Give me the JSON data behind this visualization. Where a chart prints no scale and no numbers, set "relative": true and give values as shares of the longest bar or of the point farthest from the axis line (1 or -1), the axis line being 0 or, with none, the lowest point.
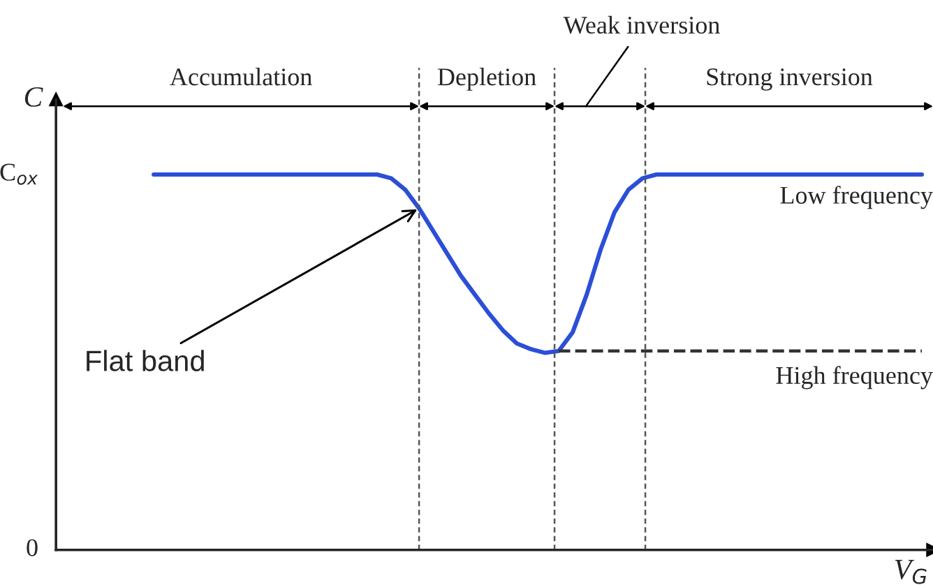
{
  "chart_data": {
    "type": "line",
    "ylabel": "C",
    "xlabel": "V$_{G}$",
    "relative": true,
    "categories": [
      null,
      null,
      null,
      null,
      null,
      null,
      null,
      null,
      null,
      null,
      null,
      null,
      null,
      null,
      null,
      null,
      null,
      null,
      null,
      null,
      null,
      null,
      null,
      null,
      null,
      null,
      null,
      null,
      null,
      null,
      null,
      null,
      null,
      null,
      null,
      null,
      null,
      null,
      null,
      null,
      null,
      null,
      null,
      null,
      null,
      null,
      null,
      null,
      null,
      null,
      null,
      null,
      null,
      null,
      null,
      null
    ],
    "series": [
      {
        "name": "Low frequency",
        "color": "#2b4fd6",
        "line_style": "solid",
        "values": [
          1.0,
          1.0,
          1.0,
          1.0,
          1.0,
          1.0,
          1.0,
          1.0,
          1.0,
          1.0,
          1.0,
          1.0,
          1.0,
          1.0,
          1.0,
          1.0,
          1.0,
          0.99,
          0.96,
          0.91,
          0.85,
          0.79,
          0.73,
          0.68,
          0.63,
          0.585,
          0.55,
          0.535,
          0.525,
          0.53,
          0.58,
          0.68,
          0.8,
          0.9,
          0.96,
          0.99,
          1.0,
          1.0,
          1.0,
          1.0,
          1.0,
          1.0,
          1.0,
          1.0,
          1.0,
          1.0,
          1.0,
          1.0,
          1.0,
          1.0,
          1.0,
          1.0,
          1.0,
          1.0,
          1.0,
          1.0
        ]
      },
      {
        "name": "High frequency",
        "color": "#333333",
        "line_style": "dashed",
        "values": [
          null,
          null,
          null,
          null,
          null,
          null,
          null,
          null,
          null,
          null,
          null,
          null,
          null,
          null,
          null,
          null,
          null,
          null,
          null,
          null,
          null,
          null,
          null,
          null,
          null,
          null,
          null,
          null,
          null,
          0.53,
          0.53,
          0.53,
          0.53,
          0.53,
          0.53,
          0.53,
          0.53,
          0.53,
          0.53,
          0.53,
          0.53,
          0.53,
          0.53,
          0.53,
          0.53,
          0.53,
          0.53,
          0.53,
          0.53,
          0.53,
          0.53,
          0.53,
          0.53,
          0.53,
          0.53,
          0.53
        ]
      }
    ],
    "annotations": [
      "Accumulation",
      "Depletion",
      "Weak inversion",
      "Strong inversion",
      "Flat band",
      "C$_{ox}$",
      "0"
    ],
    "grid": false,
    "legend": false
  }
}
